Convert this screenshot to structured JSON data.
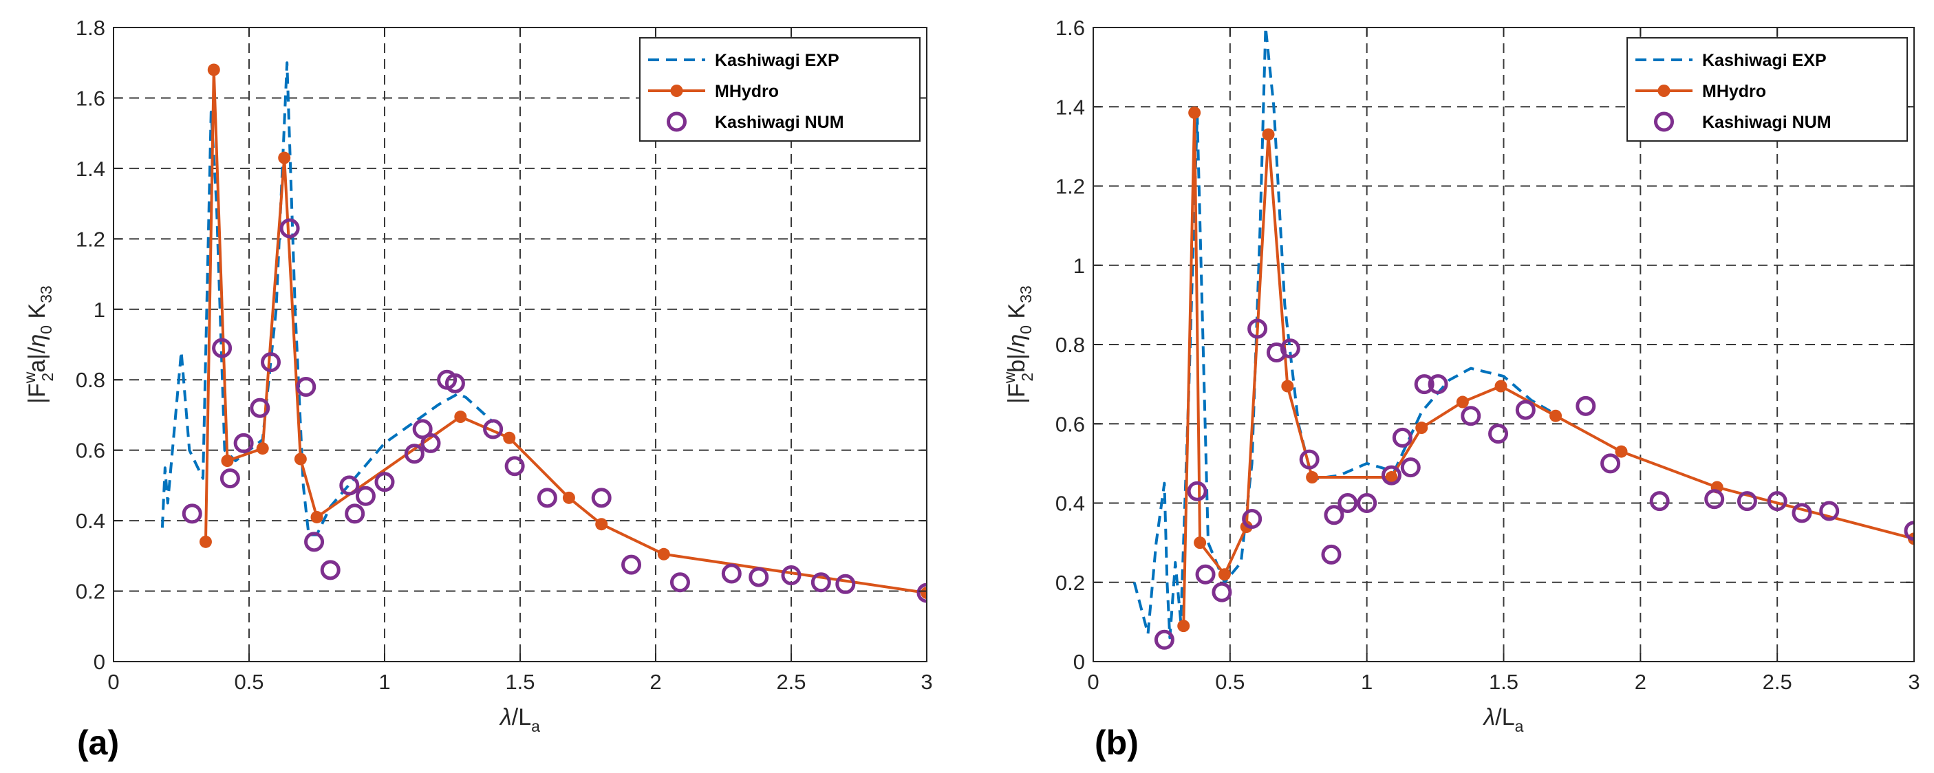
{
  "chart_data": [
    {
      "type": "line",
      "panel_label": "(a)",
      "xlabel": "λ/L_a",
      "ylabel": "|F_2^w a|/η_0 K_33",
      "xlim": [
        0,
        3
      ],
      "ylim": [
        0,
        1.8
      ],
      "xticks": [
        "0",
        "0.5",
        "1",
        "1.5",
        "2",
        "2.5",
        "3"
      ],
      "yticks": [
        "0",
        "0.2",
        "0.4",
        "0.6",
        "0.8",
        "1",
        "1.2",
        "1.4",
        "1.6",
        "1.8"
      ],
      "grid": true,
      "legend_position": "top-right",
      "series": [
        {
          "name": "Kashiwagi EXP",
          "style": "dashed",
          "color": "#0072BD",
          "x": [
            0.18,
            0.19,
            0.2,
            0.25,
            0.28,
            0.33,
            0.36,
            0.38,
            0.41,
            0.45,
            0.55,
            0.6,
            0.64,
            0.67,
            0.7,
            0.72,
            0.75,
            0.8,
            1.0,
            1.2,
            1.27,
            1.3,
            1.4
          ],
          "y": [
            0.38,
            0.55,
            0.45,
            0.88,
            0.6,
            0.52,
            1.56,
            1.3,
            0.6,
            0.57,
            0.63,
            1.0,
            1.7,
            1.0,
            0.5,
            0.36,
            0.36,
            0.44,
            0.62,
            0.73,
            0.76,
            0.75,
            0.68
          ]
        },
        {
          "name": "MHydro",
          "style": "solid-marker",
          "color": "#D95319",
          "x": [
            0.34,
            0.37,
            0.42,
            0.55,
            0.63,
            0.69,
            0.75,
            1.28,
            1.46,
            1.68,
            1.8,
            2.03,
            3.0
          ],
          "y": [
            0.34,
            1.68,
            0.57,
            0.605,
            1.43,
            0.575,
            0.41,
            0.695,
            0.635,
            0.465,
            0.39,
            0.305,
            0.195
          ]
        },
        {
          "name": "Kashiwagi NUM",
          "style": "circle-marker",
          "color": "#7E2F8E",
          "x": [
            0.29,
            0.4,
            0.43,
            0.48,
            0.54,
            0.58,
            0.65,
            0.71,
            0.74,
            0.8,
            0.87,
            0.89,
            0.93,
            1.0,
            1.11,
            1.14,
            1.17,
            1.23,
            1.26,
            1.4,
            1.48,
            1.6,
            1.8,
            1.91,
            2.09,
            2.28,
            2.38,
            2.5,
            2.61,
            2.7,
            3.0
          ],
          "y": [
            0.42,
            0.89,
            0.52,
            0.62,
            0.72,
            0.85,
            1.23,
            0.78,
            0.34,
            0.26,
            0.5,
            0.42,
            0.47,
            0.51,
            0.59,
            0.66,
            0.62,
            0.8,
            0.79,
            0.66,
            0.555,
            0.465,
            0.465,
            0.275,
            0.225,
            0.25,
            0.24,
            0.245,
            0.225,
            0.22,
            0.195
          ]
        }
      ]
    },
    {
      "type": "line",
      "panel_label": "(b)",
      "xlabel": "λ/L_a",
      "ylabel": "|F_2^w b|/η_0 K_33",
      "xlim": [
        0,
        3
      ],
      "ylim": [
        0,
        1.6
      ],
      "xticks": [
        "0",
        "0.5",
        "1",
        "1.5",
        "2",
        "2.5",
        "3"
      ],
      "yticks": [
        "0",
        "0.2",
        "0.4",
        "0.6",
        "0.8",
        "1",
        "1.2",
        "1.4",
        "1.6"
      ],
      "grid": true,
      "legend_position": "top-right",
      "series": [
        {
          "name": "Kashiwagi EXP",
          "style": "dashed",
          "color": "#0072BD",
          "x": [
            0.15,
            0.2,
            0.23,
            0.26,
            0.27,
            0.28,
            0.3,
            0.32,
            0.35,
            0.38,
            0.42,
            0.48,
            0.54,
            0.58,
            0.61,
            0.63,
            0.66,
            0.7,
            0.75,
            0.8,
            0.9,
            1.0,
            1.1,
            1.2,
            1.3,
            1.38,
            1.5,
            1.6,
            1.7
          ],
          "y": [
            0.2,
            0.07,
            0.3,
            0.45,
            0.2,
            0.06,
            0.25,
            0.1,
            0.7,
            1.38,
            0.3,
            0.2,
            0.25,
            0.5,
            1.1,
            1.6,
            1.4,
            0.9,
            0.6,
            0.46,
            0.47,
            0.5,
            0.48,
            0.63,
            0.71,
            0.74,
            0.72,
            0.66,
            0.62
          ]
        },
        {
          "name": "MHydro",
          "style": "solid-marker",
          "color": "#D95319",
          "x": [
            0.33,
            0.37,
            0.39,
            0.48,
            0.56,
            0.64,
            0.71,
            0.8,
            1.09,
            1.2,
            1.35,
            1.49,
            1.69,
            1.93,
            2.28,
            3.0
          ],
          "y": [
            0.09,
            1.385,
            0.3,
            0.22,
            0.34,
            1.33,
            0.695,
            0.465,
            0.465,
            0.59,
            0.655,
            0.695,
            0.62,
            0.53,
            0.44,
            0.31
          ]
        },
        {
          "name": "Kashiwagi NUM",
          "style": "circle-marker",
          "color": "#7E2F8E",
          "x": [
            0.26,
            0.38,
            0.41,
            0.47,
            0.58,
            0.6,
            0.67,
            0.72,
            0.79,
            0.87,
            0.88,
            0.93,
            1.0,
            1.09,
            1.13,
            1.16,
            1.21,
            1.26,
            1.38,
            1.48,
            1.58,
            1.8,
            1.89,
            2.07,
            2.27,
            2.39,
            2.5,
            2.59,
            2.69,
            3.0
          ],
          "y": [
            0.055,
            0.43,
            0.22,
            0.175,
            0.36,
            0.84,
            0.78,
            0.79,
            0.51,
            0.27,
            0.37,
            0.4,
            0.4,
            0.47,
            0.565,
            0.49,
            0.7,
            0.7,
            0.62,
            0.575,
            0.635,
            0.645,
            0.5,
            0.405,
            0.41,
            0.405,
            0.405,
            0.375,
            0.38,
            0.33
          ]
        }
      ]
    }
  ]
}
